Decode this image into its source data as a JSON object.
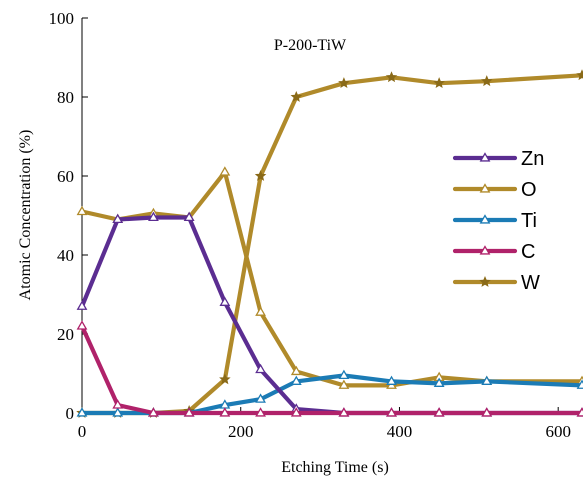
{
  "chart_data": {
    "type": "line",
    "title": "P-200-TiW",
    "xlabel": "Etching Time (s)",
    "ylabel": "Atomic Concentration (%)",
    "xlim": [
      0,
      630
    ],
    "ylim": [
      0,
      100
    ],
    "xticks": [
      0,
      200,
      400,
      600
    ],
    "yticks": [
      0,
      20,
      40,
      60,
      80,
      100
    ],
    "legend_position": "right",
    "grid": false,
    "series": [
      {
        "name": "Zn",
        "color": "#5b2d91",
        "marker": "triangle",
        "x": [
          0,
          45,
          90,
          135,
          180,
          225,
          270,
          330,
          390,
          450,
          510,
          630
        ],
        "y": [
          27,
          49,
          49.5,
          49.5,
          28,
          11,
          1,
          0,
          0,
          0,
          0,
          0
        ]
      },
      {
        "name": "O",
        "color": "#b08a2a",
        "marker": "triangle",
        "x": [
          0,
          45,
          90,
          135,
          180,
          225,
          270,
          330,
          390,
          450,
          510,
          630
        ],
        "y": [
          51,
          49,
          50.5,
          49.5,
          61,
          25.5,
          10.5,
          7,
          7,
          9,
          8,
          8
        ]
      },
      {
        "name": "Ti",
        "color": "#1b7bb5",
        "marker": "triangle",
        "x": [
          0,
          45,
          90,
          135,
          180,
          225,
          270,
          330,
          390,
          450,
          510,
          630
        ],
        "y": [
          0,
          0,
          0,
          0,
          2,
          3.5,
          8,
          9.5,
          8,
          7.5,
          8,
          7
        ]
      },
      {
        "name": "C",
        "color": "#b0226a",
        "marker": "triangle",
        "x": [
          0,
          45,
          90,
          135,
          180,
          225,
          270,
          330,
          390,
          450,
          510,
          630
        ],
        "y": [
          22,
          2,
          0,
          0,
          0,
          0,
          0,
          0,
          0,
          0,
          0,
          0
        ]
      },
      {
        "name": "W",
        "color": "#b08a2a",
        "marker": "star",
        "x": [
          0,
          45,
          90,
          135,
          180,
          225,
          270,
          330,
          390,
          450,
          510,
          630
        ],
        "y": [
          0,
          0,
          0,
          0.5,
          8.5,
          60,
          80,
          83.5,
          85,
          83.5,
          84,
          85.5
        ]
      }
    ]
  }
}
